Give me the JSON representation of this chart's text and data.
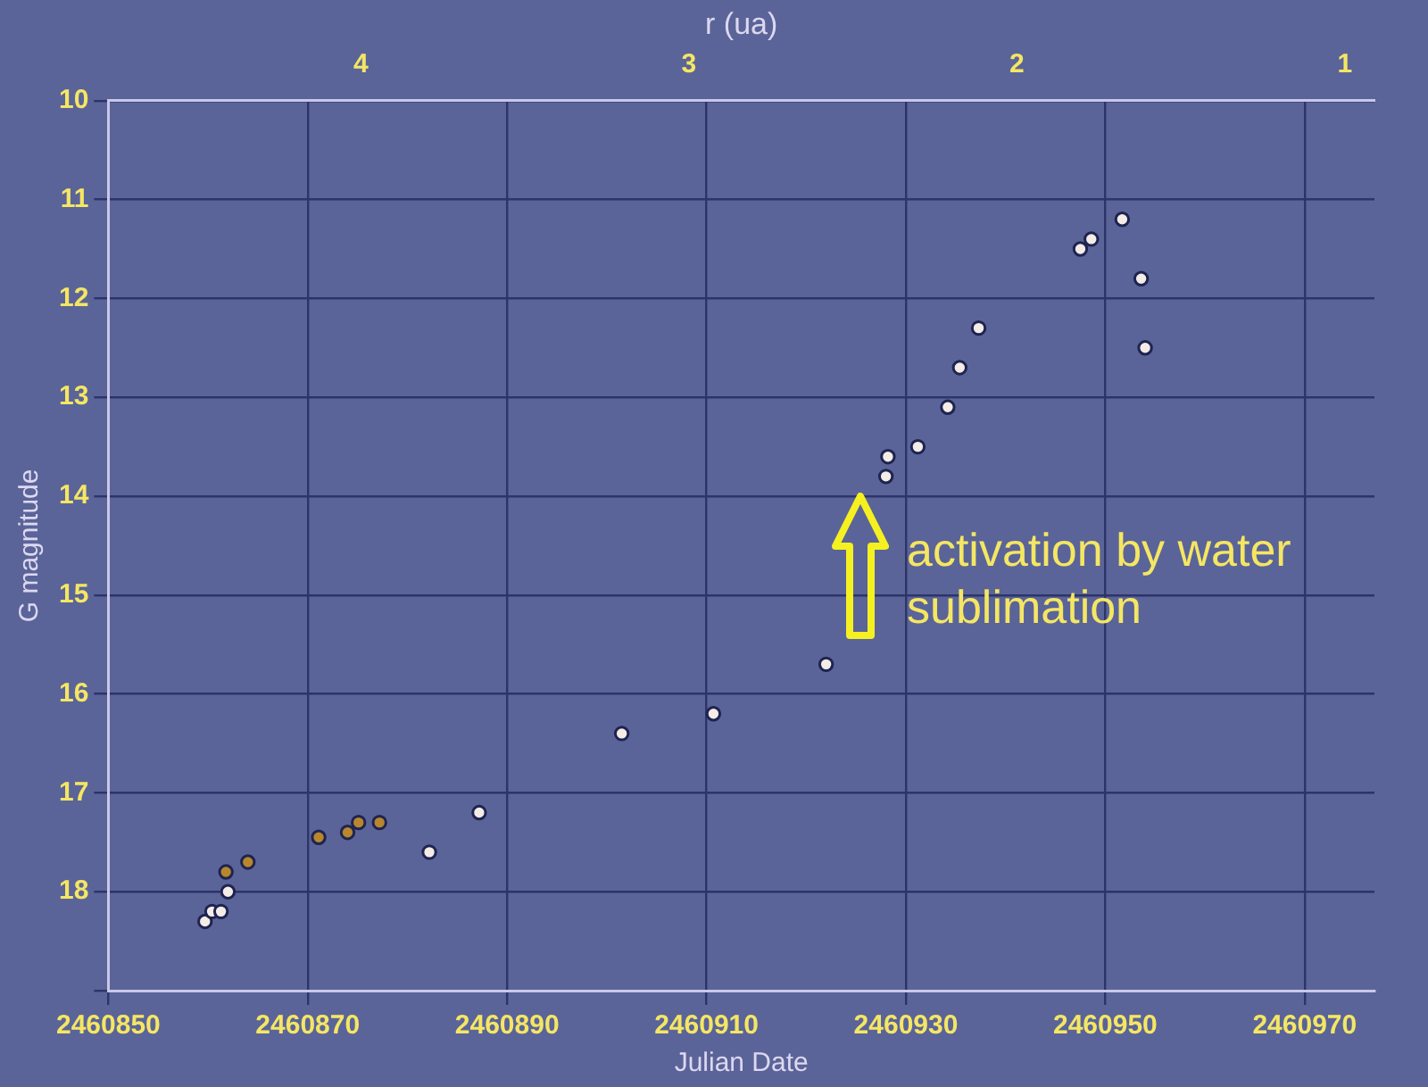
{
  "chart_data": {
    "type": "scatter",
    "xlabel": "Julian Date",
    "ylabel": "G magnitude",
    "x2label": "r (ua)",
    "xlim": [
      2460850,
      2460977
    ],
    "xticks": [
      2460850,
      2460870,
      2460890,
      2460910,
      2460930,
      2460950,
      2460970
    ],
    "ylim": [
      19,
      10
    ],
    "yticks": [
      10,
      11,
      12,
      13,
      14,
      15,
      16,
      17,
      18,
      {
        "value": 19,
        "label": null
      }
    ],
    "x2lim": [
      4.77,
      0.91
    ],
    "x2ticks": [
      4,
      3,
      2,
      1
    ],
    "grid": true,
    "legend": false,
    "marker": "circle",
    "annotations": [
      "activation by water sublimation"
    ],
    "series": [
      {
        "color": "#f4ece6",
        "x": [
          2460859.7,
          2460860.4,
          2460861.3,
          2460862.0,
          2460882.2,
          2460887.2,
          2460901.5,
          2460910.7,
          2460922.0,
          2460928.0,
          2460928.2,
          2460931.2,
          2460934.2,
          2460935.4,
          2460937.3,
          2460947.5,
          2460948.6,
          2460951.7,
          2460953.6,
          2460954.0
        ],
        "values": [
          18.3,
          18.2,
          18.2,
          18.0,
          17.6,
          17.2,
          16.4,
          16.2,
          15.7,
          13.8,
          13.6,
          13.5,
          13.1,
          12.7,
          12.3,
          11.5,
          11.4,
          11.2,
          11.8,
          12.5
        ]
      },
      {
        "color": "#b8862c",
        "x": [
          2460861.8,
          2460864.0,
          2460871.1,
          2460874.0,
          2460875.1,
          2460877.2
        ],
        "values": [
          17.8,
          17.7,
          17.45,
          17.4,
          17.3,
          17.3
        ]
      }
    ]
  }
}
